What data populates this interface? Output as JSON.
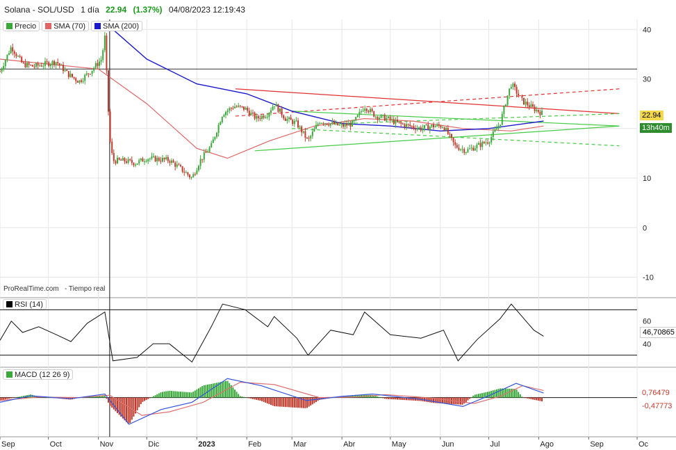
{
  "header": {
    "instrument": "Solana - SOL/USD",
    "period": "1 día",
    "last": "22.94",
    "change": "(1.37%)",
    "datetime": "04/08/2023 12:19:43"
  },
  "legend": [
    {
      "label": "Precio",
      "color": "#3aa83a"
    },
    {
      "label": "SMA (70)",
      "color": "#e06666"
    },
    {
      "label": "SMA (200)",
      "color": "#1a1acc"
    }
  ],
  "watermark": {
    "brand": "ProRealTime.com",
    "mode": "- Tiempo real"
  },
  "price_tags": {
    "last": "22.94",
    "countdown": "13h40m"
  },
  "rsi": {
    "label": "RSI (14)",
    "value_tag": "46,70865",
    "ticks": [
      "60",
      "40"
    ],
    "color": "#000000"
  },
  "macd": {
    "label": "MACD (12 26 9)",
    "value_tag_1": "0,76479",
    "value_tag_2": "-0,47773",
    "color": "#3aa83a"
  },
  "colors": {
    "up": "#3aa83a",
    "down": "#c0392b",
    "sma70": "#e06666",
    "sma200": "#1a1acc",
    "trend_red": "#e03030",
    "trend_green": "#44cc44"
  },
  "chart_data": {
    "type": "line",
    "title": "Solana - SOL/USD",
    "y_ticks": [
      40,
      30,
      20,
      10,
      0,
      -10
    ],
    "ylim": [
      -14,
      42
    ],
    "x_ticks": [
      "Sep",
      "Oct",
      "Nov",
      "Dic",
      "2023",
      "Feb",
      "Mar",
      "Abr",
      "May",
      "Jun",
      "Jul",
      "Ago",
      "Sep",
      "Oc"
    ],
    "horizontal_level": 32,
    "price_series": [
      {
        "t": "2022-09-01",
        "v": 31.5
      },
      {
        "t": "2022-09-08",
        "v": 36.5
      },
      {
        "t": "2022-09-15",
        "v": 33.0
      },
      {
        "t": "2022-09-22",
        "v": 32.5
      },
      {
        "t": "2022-09-29",
        "v": 33.0
      },
      {
        "t": "2022-10-06",
        "v": 33.5
      },
      {
        "t": "2022-10-13",
        "v": 31.0
      },
      {
        "t": "2022-10-20",
        "v": 29.5
      },
      {
        "t": "2022-10-27",
        "v": 31.5
      },
      {
        "t": "2022-11-03",
        "v": 34.0
      },
      {
        "t": "2022-11-05",
        "v": 38.5
      },
      {
        "t": "2022-11-08",
        "v": 18.0
      },
      {
        "t": "2022-11-10",
        "v": 13.5
      },
      {
        "t": "2022-11-17",
        "v": 13.5
      },
      {
        "t": "2022-11-24",
        "v": 13.0
      },
      {
        "t": "2022-12-01",
        "v": 14.0
      },
      {
        "t": "2022-12-08",
        "v": 13.8
      },
      {
        "t": "2022-12-15",
        "v": 13.6
      },
      {
        "t": "2022-12-22",
        "v": 11.9
      },
      {
        "t": "2022-12-29",
        "v": 10.0
      },
      {
        "t": "2023-01-03",
        "v": 13.5
      },
      {
        "t": "2023-01-10",
        "v": 16.5
      },
      {
        "t": "2023-01-17",
        "v": 23.0
      },
      {
        "t": "2023-01-24",
        "v": 24.5
      },
      {
        "t": "2023-01-31",
        "v": 24.0
      },
      {
        "t": "2023-02-07",
        "v": 22.0
      },
      {
        "t": "2023-02-14",
        "v": 23.0
      },
      {
        "t": "2023-02-18",
        "v": 25.0
      },
      {
        "t": "2023-02-25",
        "v": 22.0
      },
      {
        "t": "2023-03-04",
        "v": 21.0
      },
      {
        "t": "2023-03-11",
        "v": 17.5
      },
      {
        "t": "2023-03-18",
        "v": 21.5
      },
      {
        "t": "2023-03-25",
        "v": 21.0
      },
      {
        "t": "2023-04-01",
        "v": 20.5
      },
      {
        "t": "2023-04-08",
        "v": 21.0
      },
      {
        "t": "2023-04-15",
        "v": 24.5
      },
      {
        "t": "2023-04-22",
        "v": 22.5
      },
      {
        "t": "2023-04-29",
        "v": 22.0
      },
      {
        "t": "2023-05-06",
        "v": 21.0
      },
      {
        "t": "2023-05-13",
        "v": 20.5
      },
      {
        "t": "2023-05-20",
        "v": 20.0
      },
      {
        "t": "2023-05-27",
        "v": 20.5
      },
      {
        "t": "2023-06-03",
        "v": 20.5
      },
      {
        "t": "2023-06-10",
        "v": 16.5
      },
      {
        "t": "2023-06-17",
        "v": 15.5
      },
      {
        "t": "2023-06-24",
        "v": 16.5
      },
      {
        "t": "2023-07-01",
        "v": 17.5
      },
      {
        "t": "2023-07-08",
        "v": 21.0
      },
      {
        "t": "2023-07-13",
        "v": 27.0
      },
      {
        "t": "2023-07-15",
        "v": 29.0
      },
      {
        "t": "2023-07-22",
        "v": 25.5
      },
      {
        "t": "2023-07-29",
        "v": 24.0
      },
      {
        "t": "2023-08-04",
        "v": 22.94
      }
    ],
    "sma70_series": [
      {
        "t": "2022-09-01",
        "v": 34.0
      },
      {
        "t": "2022-10-01",
        "v": 33.0
      },
      {
        "t": "2022-11-01",
        "v": 32.0
      },
      {
        "t": "2022-12-01",
        "v": 25.0
      },
      {
        "t": "2023-01-01",
        "v": 16.0
      },
      {
        "t": "2023-01-20",
        "v": 14.0
      },
      {
        "t": "2023-02-15",
        "v": 17.5
      },
      {
        "t": "2023-03-15",
        "v": 20.5
      },
      {
        "t": "2023-04-15",
        "v": 22.0
      },
      {
        "t": "2023-05-15",
        "v": 21.5
      },
      {
        "t": "2023-06-15",
        "v": 20.0
      },
      {
        "t": "2023-07-15",
        "v": 19.5
      },
      {
        "t": "2023-08-04",
        "v": 20.5
      }
    ],
    "sma200_series": [
      {
        "t": "2022-11-10",
        "v": 40.0
      },
      {
        "t": "2022-12-01",
        "v": 34.0
      },
      {
        "t": "2023-01-01",
        "v": 29.0
      },
      {
        "t": "2023-02-01",
        "v": 27.0
      },
      {
        "t": "2023-03-01",
        "v": 23.5
      },
      {
        "t": "2023-04-01",
        "v": 21.0
      },
      {
        "t": "2023-05-01",
        "v": 20.5
      },
      {
        "t": "2023-06-01",
        "v": 19.5
      },
      {
        "t": "2023-07-01",
        "v": 20.0
      },
      {
        "t": "2023-08-04",
        "v": 21.5
      }
    ],
    "trendlines": [
      {
        "color": "red",
        "dashed": false,
        "from": {
          "t": "2023-01-25",
          "v": 28.0
        },
        "to": {
          "t": "2023-09-20",
          "v": 23.0
        }
      },
      {
        "color": "red",
        "dashed": true,
        "from": {
          "t": "2023-01-25",
          "v": 22.5
        },
        "to": {
          "t": "2023-09-20",
          "v": 28.0
        }
      },
      {
        "color": "green",
        "dashed": false,
        "from": {
          "t": "2023-02-06",
          "v": 15.5
        },
        "to": {
          "t": "2023-09-20",
          "v": 20.5
        }
      },
      {
        "color": "green",
        "dashed": false,
        "from": {
          "t": "2023-03-01",
          "v": 23.5
        },
        "to": {
          "t": "2023-09-20",
          "v": 20.5
        }
      },
      {
        "color": "green",
        "dashed": true,
        "from": {
          "t": "2023-03-01",
          "v": 20.0
        },
        "to": {
          "t": "2023-09-20",
          "v": 16.5
        }
      },
      {
        "color": "green",
        "dashed": true,
        "from": {
          "t": "2023-04-01",
          "v": 21.0
        },
        "to": {
          "t": "2023-09-20",
          "v": 23.0
        }
      }
    ],
    "rsi_series": [
      {
        "t": "2022-09-01",
        "v": 43
      },
      {
        "t": "2022-09-08",
        "v": 60
      },
      {
        "t": "2022-09-15",
        "v": 50
      },
      {
        "t": "2022-09-25",
        "v": 55
      },
      {
        "t": "2022-10-06",
        "v": 48
      },
      {
        "t": "2022-10-15",
        "v": 42
      },
      {
        "t": "2022-10-25",
        "v": 58
      },
      {
        "t": "2022-11-05",
        "v": 68
      },
      {
        "t": "2022-11-10",
        "v": 25
      },
      {
        "t": "2022-11-25",
        "v": 28
      },
      {
        "t": "2022-12-05",
        "v": 40
      },
      {
        "t": "2022-12-15",
        "v": 40
      },
      {
        "t": "2022-12-29",
        "v": 24
      },
      {
        "t": "2023-01-10",
        "v": 55
      },
      {
        "t": "2023-01-17",
        "v": 75
      },
      {
        "t": "2023-01-31",
        "v": 70
      },
      {
        "t": "2023-02-14",
        "v": 55
      },
      {
        "t": "2023-02-18",
        "v": 64
      },
      {
        "t": "2023-03-04",
        "v": 45
      },
      {
        "t": "2023-03-11",
        "v": 30
      },
      {
        "t": "2023-03-25",
        "v": 52
      },
      {
        "t": "2023-04-08",
        "v": 48
      },
      {
        "t": "2023-04-15",
        "v": 68
      },
      {
        "t": "2023-05-01",
        "v": 48
      },
      {
        "t": "2023-05-20",
        "v": 45
      },
      {
        "t": "2023-06-03",
        "v": 52
      },
      {
        "t": "2023-06-12",
        "v": 25
      },
      {
        "t": "2023-06-24",
        "v": 44
      },
      {
        "t": "2023-07-08",
        "v": 62
      },
      {
        "t": "2023-07-15",
        "v": 75
      },
      {
        "t": "2023-07-29",
        "v": 52
      },
      {
        "t": "2023-08-04",
        "v": 46.7
      }
    ],
    "macd_series": [
      {
        "t": "2022-09-01",
        "v": -0.8
      },
      {
        "t": "2022-09-20",
        "v": 0.3
      },
      {
        "t": "2022-10-15",
        "v": -0.2
      },
      {
        "t": "2022-11-05",
        "v": 0.6
      },
      {
        "t": "2022-11-20",
        "v": -4.5
      },
      {
        "t": "2022-12-10",
        "v": -2.0
      },
      {
        "t": "2022-12-29",
        "v": -0.8
      },
      {
        "t": "2023-01-20",
        "v": 3.2
      },
      {
        "t": "2023-02-10",
        "v": 2.0
      },
      {
        "t": "2023-03-10",
        "v": -0.5
      },
      {
        "t": "2023-04-01",
        "v": 0.2
      },
      {
        "t": "2023-04-20",
        "v": 0.6
      },
      {
        "t": "2023-05-20",
        "v": -0.3
      },
      {
        "t": "2023-06-15",
        "v": -1.5
      },
      {
        "t": "2023-07-01",
        "v": 0.3
      },
      {
        "t": "2023-07-18",
        "v": 2.4
      },
      {
        "t": "2023-08-04",
        "v": 0.76479
      }
    ],
    "macd_signal_series": [
      {
        "t": "2022-09-01",
        "v": -0.5
      },
      {
        "t": "2022-09-25",
        "v": 0.1
      },
      {
        "t": "2022-10-20",
        "v": 0.0
      },
      {
        "t": "2022-11-08",
        "v": 0.4
      },
      {
        "t": "2022-11-28",
        "v": -3.0
      },
      {
        "t": "2022-12-15",
        "v": -2.4
      },
      {
        "t": "2023-01-05",
        "v": -0.8
      },
      {
        "t": "2023-01-28",
        "v": 2.6
      },
      {
        "t": "2023-02-18",
        "v": 2.2
      },
      {
        "t": "2023-03-18",
        "v": 0.0
      },
      {
        "t": "2023-04-10",
        "v": 0.1
      },
      {
        "t": "2023-04-28",
        "v": 0.5
      },
      {
        "t": "2023-05-28",
        "v": -0.1
      },
      {
        "t": "2023-06-22",
        "v": -1.0
      },
      {
        "t": "2023-07-08",
        "v": 0.2
      },
      {
        "t": "2023-07-22",
        "v": 2.0
      },
      {
        "t": "2023-08-04",
        "v": 1.2
      }
    ]
  }
}
